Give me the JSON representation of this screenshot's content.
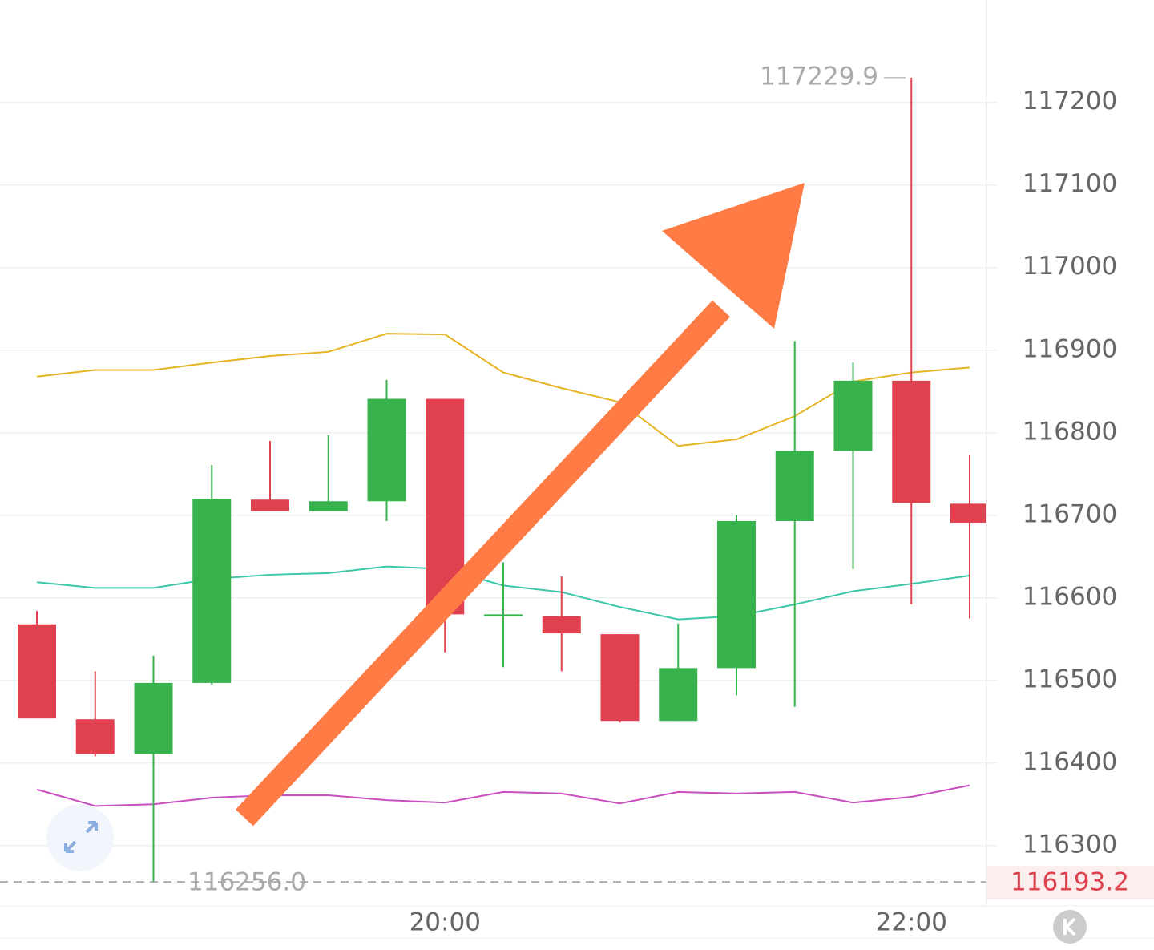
{
  "chart_data": {
    "type": "candlestick",
    "categories": [
      null,
      null,
      null,
      null,
      null,
      null,
      null,
      "20:00",
      null,
      null,
      null,
      null,
      null,
      null,
      null,
      "22:00",
      null
    ],
    "open": [
      116568,
      116453,
      116411,
      116497,
      116719,
      116705,
      116717,
      116841,
      116580,
      116578,
      116556,
      116451,
      116515,
      116693,
      116778,
      116863,
      116714
    ],
    "high": [
      116584,
      116511,
      116530,
      116761,
      116790,
      116797,
      116864,
      116841,
      116643,
      116626,
      116556,
      116569,
      116700,
      116911,
      116885,
      117229.9,
      116773
    ],
    "low": [
      116454,
      116408,
      116256,
      116495,
      116705,
      116705,
      116693,
      116534,
      116516,
      116511,
      116449,
      116451,
      116482,
      116468,
      116635,
      116592,
      116575
    ],
    "close": [
      116454,
      116411,
      116497,
      116720,
      116705,
      116717,
      116841,
      116580,
      116580,
      116557,
      116451,
      116515,
      116693,
      116778,
      116863,
      116715,
      116691
    ],
    "up_color": "#37b24d",
    "down_color": "#e0414f",
    "lines": [
      {
        "color": "#e6b422",
        "values": [
          116868,
          116876,
          116876,
          116885,
          116893,
          116898,
          116920,
          116919,
          116873,
          116854,
          116837,
          116784,
          116792,
          116820,
          116862,
          116873,
          116879
        ]
      },
      {
        "color": "#3cc8a8",
        "values": [
          116619,
          116612,
          116612,
          116623,
          116628,
          116630,
          116638,
          116635,
          116615,
          116607,
          116589,
          116574,
          116578,
          116592,
          116608,
          116617,
          116627
        ]
      },
      {
        "color": "#c94fc0",
        "values": [
          116368,
          116348,
          116350,
          116358,
          116361,
          116361,
          116355,
          116352,
          116365,
          116363,
          116351,
          116365,
          116363,
          116365,
          116352,
          116359,
          116373
        ]
      }
    ],
    "ylim": [
      116227,
      117324
    ],
    "yticks": [
      116300,
      116400,
      116500,
      116600,
      116700,
      116800,
      116900,
      117000,
      117100,
      117200
    ],
    "grid": true,
    "max_label": {
      "value": 117229.9,
      "label": "117229.9"
    },
    "min_label": {
      "value": 116256,
      "label": "116256.0"
    },
    "last_price": 116193.2
  }
}
